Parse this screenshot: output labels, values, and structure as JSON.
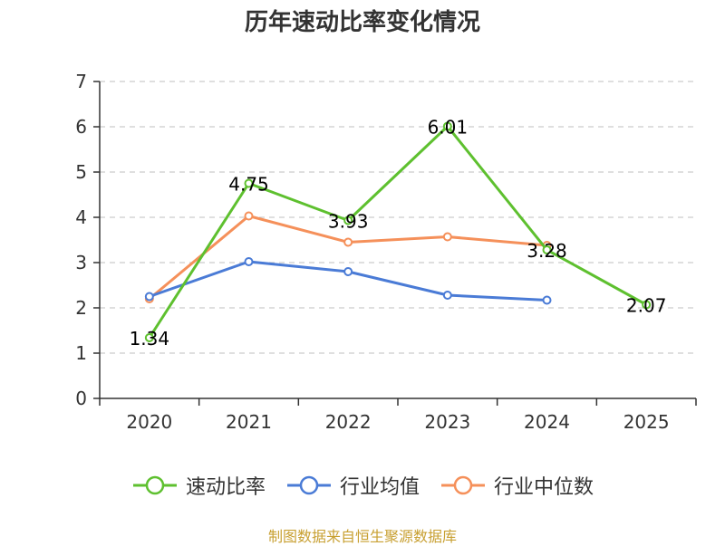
{
  "chart_data": {
    "type": "line",
    "title": "历年速动比率变化情况",
    "categories": [
      "2020",
      "2021",
      "2022",
      "2023",
      "2024",
      "2025"
    ],
    "ylim": [
      0,
      7
    ],
    "yticks": [
      0,
      1,
      2,
      3,
      4,
      5,
      6,
      7
    ],
    "grid": true,
    "legend_position": "bottom",
    "series": [
      {
        "key": "speed",
        "name": "速动比率",
        "color": "#5ec02f",
        "values": [
          1.34,
          4.75,
          3.93,
          6.01,
          3.28,
          2.07
        ],
        "labels": [
          "1.34",
          "4.75",
          "3.93",
          "6.01",
          "3.28",
          "2.07"
        ]
      },
      {
        "key": "avg",
        "name": "行业均值",
        "color": "#4a7bd6",
        "values": [
          2.25,
          3.02,
          2.8,
          2.28,
          2.17,
          null
        ]
      },
      {
        "key": "median",
        "name": "行业中位数",
        "color": "#f5905a",
        "values": [
          2.2,
          4.03,
          3.45,
          3.57,
          3.38,
          null
        ]
      }
    ]
  },
  "source": "制图数据来自恒生聚源数据库"
}
